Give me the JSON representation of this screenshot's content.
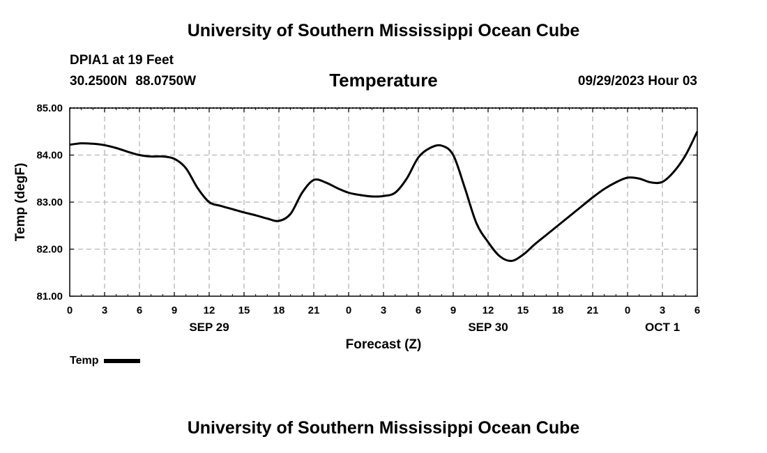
{
  "header": {
    "title": "University of Southern Mississippi Ocean Cube",
    "station": "DPIA1 at 19 Feet",
    "lat": "30.2500N",
    "lon": "88.0750W",
    "variable": "Temperature",
    "datetime": "09/29/2023 Hour 03"
  },
  "footer": {
    "title": "University of Southern Mississippi Ocean Cube"
  },
  "legend": {
    "label": "Temp"
  },
  "chart_data": {
    "type": "line",
    "title": "Temperature",
    "xlabel": "Forecast (Z)",
    "ylabel": "Temp (degF)",
    "ylim": [
      81.0,
      85.0
    ],
    "xlim": [
      0,
      54
    ],
    "y_ticks": [
      "81.00",
      "82.00",
      "83.00",
      "84.00",
      "85.00"
    ],
    "x_ticks": [
      "0",
      "3",
      "6",
      "9",
      "12",
      "15",
      "18",
      "21",
      "0",
      "3",
      "6",
      "9",
      "12",
      "15",
      "18",
      "21",
      "0",
      "3",
      "6"
    ],
    "date_labels": [
      {
        "hour": 12,
        "label": "SEP 29"
      },
      {
        "hour": 36,
        "label": "SEP 30"
      },
      {
        "hour": 51,
        "label": "OCT 1"
      }
    ],
    "grid": true,
    "series": [
      {
        "name": "Temp",
        "color": "#000000",
        "x": [
          0,
          1,
          2,
          3,
          4,
          5,
          6,
          7,
          8,
          9,
          10,
          11,
          12,
          13,
          14,
          15,
          16,
          17,
          18,
          19,
          20,
          21,
          22,
          23,
          24,
          25,
          26,
          27,
          28,
          29,
          30,
          31,
          32,
          33,
          34,
          35,
          36,
          37,
          38,
          39,
          40,
          41,
          42,
          43,
          44,
          45,
          46,
          47,
          48,
          49,
          50,
          51,
          52,
          53,
          54
        ],
        "values": [
          84.22,
          84.25,
          84.24,
          84.21,
          84.15,
          84.07,
          84.0,
          83.97,
          83.97,
          83.92,
          83.72,
          83.3,
          83.0,
          82.92,
          82.85,
          82.78,
          82.72,
          82.65,
          82.6,
          82.75,
          83.2,
          83.47,
          83.42,
          83.3,
          83.2,
          83.15,
          83.12,
          83.13,
          83.2,
          83.5,
          83.95,
          84.15,
          84.2,
          84.0,
          83.3,
          82.55,
          82.15,
          81.85,
          81.75,
          81.88,
          82.1,
          82.3,
          82.5,
          82.7,
          82.9,
          83.1,
          83.28,
          83.42,
          83.52,
          83.5,
          83.42,
          83.43,
          83.65,
          84.0,
          84.5
        ]
      }
    ]
  }
}
